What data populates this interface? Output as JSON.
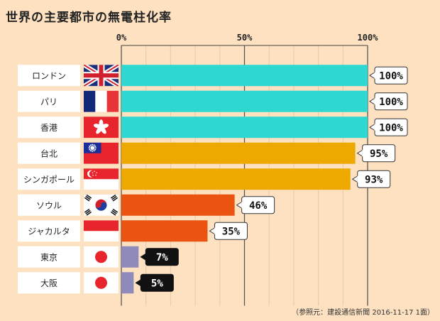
{
  "chart_data": {
    "type": "bar",
    "orientation": "horizontal",
    "title": "世界の主要都市の無電柱化率",
    "xlim": [
      0,
      100
    ],
    "ticks": [
      {
        "value": 0,
        "label": "0%"
      },
      {
        "value": 50,
        "label": "50%"
      },
      {
        "value": 100,
        "label": "100%"
      }
    ],
    "grid": true,
    "categories": [
      "ロンドン",
      "パリ",
      "香港",
      "台北",
      "シンガポール",
      "ソウル",
      "ジャカルタ",
      "東京",
      "大阪"
    ],
    "values": [
      100,
      100,
      100,
      95,
      93,
      46,
      35,
      7,
      5
    ],
    "value_labels": [
      "100%",
      "100%",
      "100%",
      "95%",
      "93%",
      "46%",
      "35%",
      "7%",
      "5%"
    ],
    "flags": [
      "uk-flag-icon",
      "france-flag-icon",
      "hongkong-flag-icon",
      "taiwan-flag-icon",
      "singapore-flag-icon",
      "korea-flag-icon",
      "indonesia-flag-icon",
      "japan-flag-icon",
      "japan-flag-icon"
    ],
    "bar_colors": [
      "#2ed8d0",
      "#2ed8d0",
      "#2ed8d0",
      "#eda900",
      "#eda900",
      "#ea5310",
      "#ea5310",
      "#8e8aba",
      "#8e8aba"
    ],
    "label_styles": [
      "light",
      "light",
      "light",
      "light",
      "light",
      "light",
      "light",
      "dark",
      "dark"
    ]
  },
  "source": "（参照元：建設通信新聞 2016-11-17 1面）"
}
